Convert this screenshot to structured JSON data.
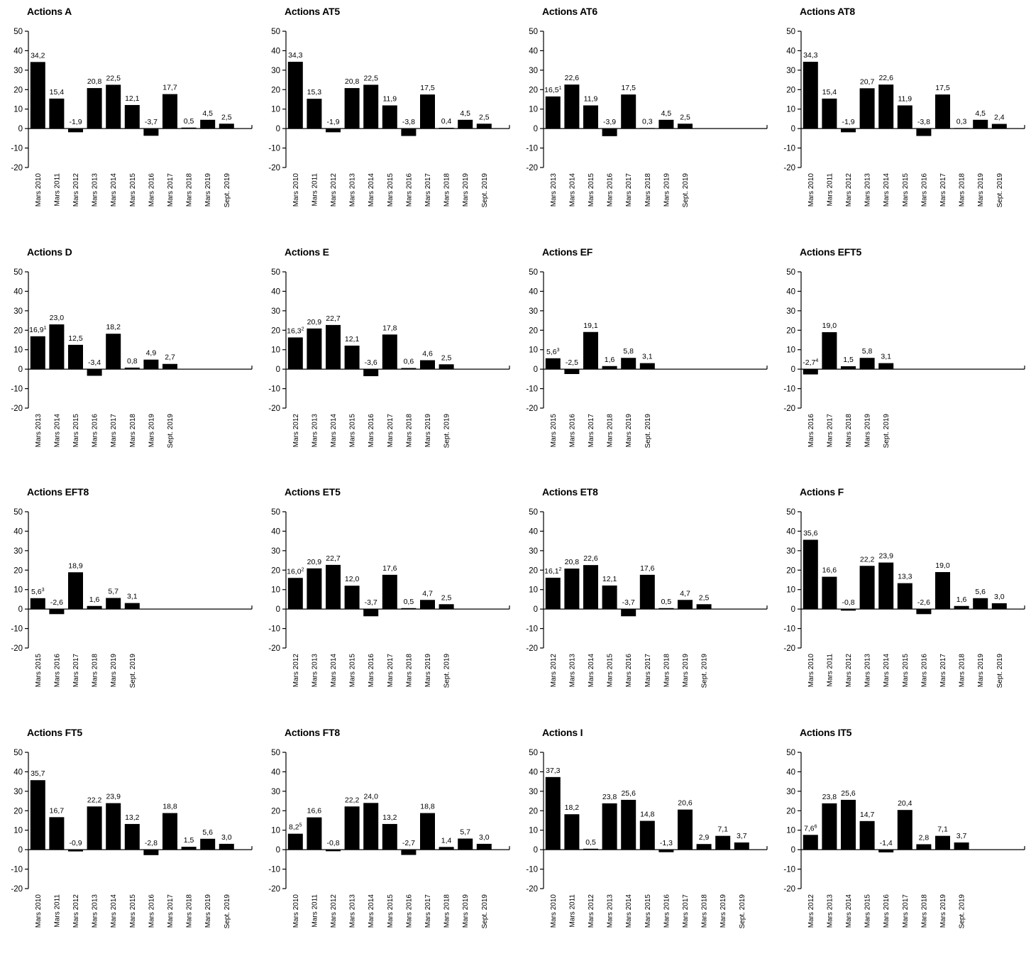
{
  "chart_data": [
    {
      "type": "bar",
      "title": "Actions A",
      "categories": [
        "Mars 2010",
        "Mars 2011",
        "Mars 2012",
        "Mars 2013",
        "Mars 2014",
        "Mars 2015",
        "Mars 2016",
        "Mars 2017",
        "Mars 2018",
        "Mars 2019",
        "Sept. 2019"
      ],
      "values": [
        34.2,
        15.4,
        -1.9,
        20.8,
        22.5,
        12.1,
        -3.7,
        17.7,
        0.5,
        4.5,
        2.5
      ],
      "labels": [
        "34,2",
        "15,4",
        "-1,9",
        "20,8",
        "22,5",
        "12,1",
        "-3,7",
        "17,7",
        "0,5",
        "4,5",
        "2,5"
      ],
      "footnotes": [
        "",
        "",
        "",
        "",
        "",
        "",
        "",
        "",
        "",
        "",
        ""
      ],
      "yticks": [
        "50",
        "40",
        "30",
        "20",
        "10",
        "0",
        "-10",
        "-20"
      ],
      "ylim": [
        -20,
        50
      ]
    },
    {
      "type": "bar",
      "title": "Actions AT5",
      "categories": [
        "Mars 2010",
        "Mars 2011",
        "Mars 2012",
        "Mars 2013",
        "Mars 2014",
        "Mars 2015",
        "Mars 2016",
        "Mars 2017",
        "Mars 2018",
        "Mars 2019",
        "Sept. 2019"
      ],
      "values": [
        34.3,
        15.3,
        -1.9,
        20.8,
        22.5,
        11.9,
        -3.8,
        17.5,
        0.4,
        4.5,
        2.5
      ],
      "labels": [
        "34,3",
        "15,3",
        "-1,9",
        "20,8",
        "22,5",
        "11,9",
        "-3,8",
        "17,5",
        "0,4",
        "4,5",
        "2,5"
      ],
      "footnotes": [
        "",
        "",
        "",
        "",
        "",
        "",
        "",
        "",
        "",
        "",
        ""
      ],
      "yticks": [
        "50",
        "40",
        "30",
        "20",
        "10",
        "0",
        "-10",
        "-20"
      ],
      "ylim": [
        -20,
        50
      ]
    },
    {
      "type": "bar",
      "title": "Actions AT6",
      "categories": [
        "Mars 2013",
        "Mars 2014",
        "Mars 2015",
        "Mars 2016",
        "Mars 2017",
        "Mars 2018",
        "Mars 2019",
        "Sept. 2019"
      ],
      "values": [
        16.5,
        22.6,
        11.9,
        -3.9,
        17.5,
        0.3,
        4.5,
        2.5
      ],
      "labels": [
        "16,5",
        "22,6",
        "11,9",
        "-3,9",
        "17,5",
        "0,3",
        "4,5",
        "2,5"
      ],
      "footnotes": [
        "1",
        "",
        "",
        "",
        "",
        "",
        "",
        ""
      ],
      "yticks": [
        "50",
        "40",
        "30",
        "20",
        "10",
        "0",
        "-10",
        "-20"
      ],
      "ylim": [
        -20,
        50
      ]
    },
    {
      "type": "bar",
      "title": "Actions AT8",
      "categories": [
        "Mars 2010",
        "Mars 2011",
        "Mars 2012",
        "Mars 2013",
        "Mars 2014",
        "Mars 2015",
        "Mars 2016",
        "Mars 2017",
        "Mars 2018",
        "Mars 2019",
        "Sept. 2019"
      ],
      "values": [
        34.3,
        15.4,
        -1.9,
        20.7,
        22.6,
        11.9,
        -3.8,
        17.5,
        0.3,
        4.5,
        2.4
      ],
      "labels": [
        "34,3",
        "15,4",
        "-1,9",
        "20,7",
        "22,6",
        "11,9",
        "-3,8",
        "17,5",
        "0,3",
        "4,5",
        "2,4"
      ],
      "footnotes": [
        "",
        "",
        "",
        "",
        "",
        "",
        "",
        "",
        "",
        "",
        ""
      ],
      "yticks": [
        "50",
        "40",
        "30",
        "20",
        "10",
        "0",
        "-10",
        "-20"
      ],
      "ylim": [
        -20,
        50
      ]
    },
    {
      "type": "bar",
      "title": "Actions D",
      "categories": [
        "Mars 2013",
        "Mars 2014",
        "Mars 2015",
        "Mars 2016",
        "Mars 2017",
        "Mars 2018",
        "Mars 2019",
        "Sept. 2019"
      ],
      "values": [
        16.9,
        23.0,
        12.5,
        -3.4,
        18.2,
        0.8,
        4.9,
        2.7
      ],
      "labels": [
        "16,9",
        "23,0",
        "12,5",
        "-3,4",
        "18,2",
        "0,8",
        "4,9",
        "2,7"
      ],
      "footnotes": [
        "1",
        "",
        "",
        "",
        "",
        "",
        "",
        ""
      ],
      "yticks": [
        "50",
        "40",
        "30",
        "20",
        "10",
        "0",
        "-10",
        "-20"
      ],
      "ylim": [
        -20,
        50
      ]
    },
    {
      "type": "bar",
      "title": "Actions E",
      "categories": [
        "Mars 2012",
        "Mars 2013",
        "Mars 2014",
        "Mars 2015",
        "Mars 2016",
        "Mars 2017",
        "Mars 2018",
        "Mars 2019",
        "Sept. 2019"
      ],
      "values": [
        16.3,
        20.9,
        22.7,
        12.1,
        -3.6,
        17.8,
        0.6,
        4.6,
        2.5
      ],
      "labels": [
        "16,3",
        "20,9",
        "22,7",
        "12,1",
        "-3,6",
        "17,8",
        "0,6",
        "4,6",
        "2,5"
      ],
      "footnotes": [
        "2",
        "",
        "",
        "",
        "",
        "",
        "",
        "",
        ""
      ],
      "yticks": [
        "50",
        "40",
        "30",
        "20",
        "10",
        "0",
        "-10",
        "-20"
      ],
      "ylim": [
        -20,
        50
      ]
    },
    {
      "type": "bar",
      "title": "Actions EF",
      "categories": [
        "Mars 2015",
        "Mars 2016",
        "Mars 2017",
        "Mars 2018",
        "Mars 2019",
        "Sept. 2019"
      ],
      "values": [
        5.6,
        -2.5,
        19.1,
        1.6,
        5.8,
        3.1
      ],
      "labels": [
        "5,6",
        "-2,5",
        "19,1",
        "1,6",
        "5,8",
        "3,1"
      ],
      "footnotes": [
        "3",
        "",
        "",
        "",
        "",
        ""
      ],
      "yticks": [
        "50",
        "40",
        "30",
        "20",
        "10",
        "0",
        "-10",
        "-20"
      ],
      "ylim": [
        -20,
        50
      ]
    },
    {
      "type": "bar",
      "title": "Actions EFT5",
      "categories": [
        "Mars 2016",
        "Mars 2017",
        "Mars 2018",
        "Mars 2019",
        "Sept. 2019"
      ],
      "values": [
        -2.7,
        19.0,
        1.5,
        5.8,
        3.1
      ],
      "labels": [
        "-2,7",
        "19,0",
        "1,5",
        "5,8",
        "3,1"
      ],
      "footnotes": [
        "4",
        "",
        "",
        "",
        ""
      ],
      "yticks": [
        "50",
        "40",
        "30",
        "20",
        "10",
        "0",
        "-10",
        "-20"
      ],
      "ylim": [
        -20,
        50
      ]
    },
    {
      "type": "bar",
      "title": "Actions EFT8",
      "categories": [
        "Mars 2015",
        "Mars 2016",
        "Mars 2017",
        "Mars 2018",
        "Mars 2019",
        "Sept. 2019"
      ],
      "values": [
        5.6,
        -2.6,
        18.9,
        1.6,
        5.7,
        3.1
      ],
      "labels": [
        "5,6",
        "-2,6",
        "18,9",
        "1,6",
        "5,7",
        "3,1"
      ],
      "footnotes": [
        "3",
        "",
        "",
        "",
        "",
        ""
      ],
      "yticks": [
        "50",
        "40",
        "30",
        "20",
        "10",
        "0",
        "-10",
        "-20"
      ],
      "ylim": [
        -20,
        50
      ]
    },
    {
      "type": "bar",
      "title": "Actions ET5",
      "categories": [
        "Mars 2012",
        "Mars 2013",
        "Mars 2014",
        "Mars 2015",
        "Mars 2016",
        "Mars 2017",
        "Mars 2018",
        "Mars 2019",
        "Sept. 2019"
      ],
      "values": [
        16.0,
        20.9,
        22.7,
        12.0,
        -3.7,
        17.6,
        0.5,
        4.7,
        2.5
      ],
      "labels": [
        "16,0",
        "20,9",
        "22,7",
        "12,0",
        "-3,7",
        "17,6",
        "0,5",
        "4,7",
        "2,5"
      ],
      "footnotes": [
        "2",
        "",
        "",
        "",
        "",
        "",
        "",
        "",
        ""
      ],
      "yticks": [
        "50",
        "40",
        "30",
        "20",
        "10",
        "0",
        "-10",
        "-20"
      ],
      "ylim": [
        -20,
        50
      ]
    },
    {
      "type": "bar",
      "title": "Actions ET8",
      "categories": [
        "Mars 2012",
        "Mars 2013",
        "Mars 2014",
        "Mars 2015",
        "Mars 2016",
        "Mars 2017",
        "Mars 2018",
        "Mars 2019",
        "Sept. 2019"
      ],
      "values": [
        16.1,
        20.8,
        22.6,
        12.1,
        -3.7,
        17.6,
        0.5,
        4.7,
        2.5
      ],
      "labels": [
        "16,1",
        "20,8",
        "22,6",
        "12,1",
        "-3,7",
        "17,6",
        "0,5",
        "4,7",
        "2,5"
      ],
      "footnotes": [
        "2",
        "",
        "",
        "",
        "",
        "",
        "",
        "",
        ""
      ],
      "yticks": [
        "50",
        "40",
        "30",
        "20",
        "10",
        "0",
        "-10",
        "-20"
      ],
      "ylim": [
        -20,
        50
      ]
    },
    {
      "type": "bar",
      "title": "Actions F",
      "categories": [
        "Mars 2010",
        "Mars 2011",
        "Mars 2012",
        "Mars 2013",
        "Mars 2014",
        "Mars 2015",
        "Mars 2016",
        "Mars 2017",
        "Mars 2018",
        "Mars 2019",
        "Sept. 2019"
      ],
      "values": [
        35.6,
        16.6,
        -0.8,
        22.2,
        23.9,
        13.3,
        -2.6,
        19.0,
        1.6,
        5.6,
        3.0
      ],
      "labels": [
        "35,6",
        "16,6",
        "-0,8",
        "22,2",
        "23,9",
        "13,3",
        "-2,6",
        "19,0",
        "1,6",
        "5,6",
        "3,0"
      ],
      "footnotes": [
        "",
        "",
        "",
        "",
        "",
        "",
        "",
        "",
        "",
        "",
        ""
      ],
      "yticks": [
        "50",
        "40",
        "30",
        "20",
        "10",
        "0",
        "-10",
        "-20"
      ],
      "ylim": [
        -20,
        50
      ]
    },
    {
      "type": "bar",
      "title": "Actions FT5",
      "categories": [
        "Mars 2010",
        "Mars 2011",
        "Mars 2012",
        "Mars 2013",
        "Mars 2014",
        "Mars 2015",
        "Mars 2016",
        "Mars 2017",
        "Mars 2018",
        "Mars 2019",
        "Sept. 2019"
      ],
      "values": [
        35.7,
        16.7,
        -0.9,
        22.2,
        23.9,
        13.2,
        -2.8,
        18.8,
        1.5,
        5.6,
        3.0
      ],
      "labels": [
        "35,7",
        "16,7",
        "-0,9",
        "22,2",
        "23,9",
        "13,2",
        "-2,8",
        "18,8",
        "1,5",
        "5,6",
        "3,0"
      ],
      "footnotes": [
        "",
        "",
        "",
        "",
        "",
        "",
        "",
        "",
        "",
        "",
        ""
      ],
      "yticks": [
        "50",
        "40",
        "30",
        "20",
        "10",
        "0",
        "-10",
        "-20"
      ],
      "ylim": [
        -20,
        50
      ]
    },
    {
      "type": "bar",
      "title": "Actions FT8",
      "categories": [
        "Mars 2010",
        "Mars 2011",
        "Mars 2012",
        "Mars 2013",
        "Mars 2014",
        "Mars 2015",
        "Mars 2016",
        "Mars 2017",
        "Mars 2018",
        "Mars 2019",
        "Sept. 2019"
      ],
      "values": [
        8.2,
        16.6,
        -0.8,
        22.2,
        24.0,
        13.2,
        -2.7,
        18.8,
        1.4,
        5.7,
        3.0
      ],
      "labels": [
        "8,2",
        "16,6",
        "-0,8",
        "22,2",
        "24,0",
        "13,2",
        "-2,7",
        "18,8",
        "1,4",
        "5,7",
        "3,0"
      ],
      "footnotes": [
        "5",
        "",
        "",
        "",
        "",
        "",
        "",
        "",
        "",
        "",
        ""
      ],
      "yticks": [
        "50",
        "40",
        "30",
        "20",
        "10",
        "0",
        "-10",
        "-20"
      ],
      "ylim": [
        -20,
        50
      ]
    },
    {
      "type": "bar",
      "title": "Actions I",
      "categories": [
        "Mars 2010",
        "Mars 2011",
        "Mars 2012",
        "Mars 2013",
        "Mars 2014",
        "Mars 2015",
        "Mars 2016",
        "Mars 2017",
        "Mars 2018",
        "Mars 2019",
        "Sept. 2019"
      ],
      "values": [
        37.3,
        18.2,
        0.5,
        23.8,
        25.6,
        14.8,
        -1.3,
        20.6,
        2.9,
        7.1,
        3.7
      ],
      "labels": [
        "37,3",
        "18,2",
        "0,5",
        "23,8",
        "25,6",
        "14,8",
        "-1,3",
        "20,6",
        "2,9",
        "7,1",
        "3,7"
      ],
      "footnotes": [
        "",
        "",
        "",
        "",
        "",
        "",
        "",
        "",
        "",
        "",
        ""
      ],
      "yticks": [
        "50",
        "40",
        "30",
        "20",
        "10",
        "0",
        "-10",
        "-20"
      ],
      "ylim": [
        -20,
        50
      ]
    },
    {
      "type": "bar",
      "title": "Actions IT5",
      "categories": [
        "Mars 2012",
        "Mars 2013",
        "Mars 2014",
        "Mars 2015",
        "Mars 2016",
        "Mars 2017",
        "Mars 2018",
        "Mars 2019",
        "Sept. 2019"
      ],
      "values": [
        7.6,
        23.8,
        25.6,
        14.7,
        -1.4,
        20.4,
        2.8,
        7.1,
        3.7
      ],
      "labels": [
        "7,6",
        "23,8",
        "25,6",
        "14,7",
        "-1,4",
        "20,4",
        "2,8",
        "7,1",
        "3,7"
      ],
      "footnotes": [
        "6",
        "",
        "",
        "",
        "",
        "",
        "",
        "",
        ""
      ],
      "yticks": [
        "50",
        "40",
        "30",
        "20",
        "10",
        "0",
        "-10",
        "-20"
      ],
      "ylim": [
        -20,
        50
      ]
    }
  ],
  "colors": {
    "bar": "#000000",
    "axis": "#000000",
    "text": "#000000"
  }
}
